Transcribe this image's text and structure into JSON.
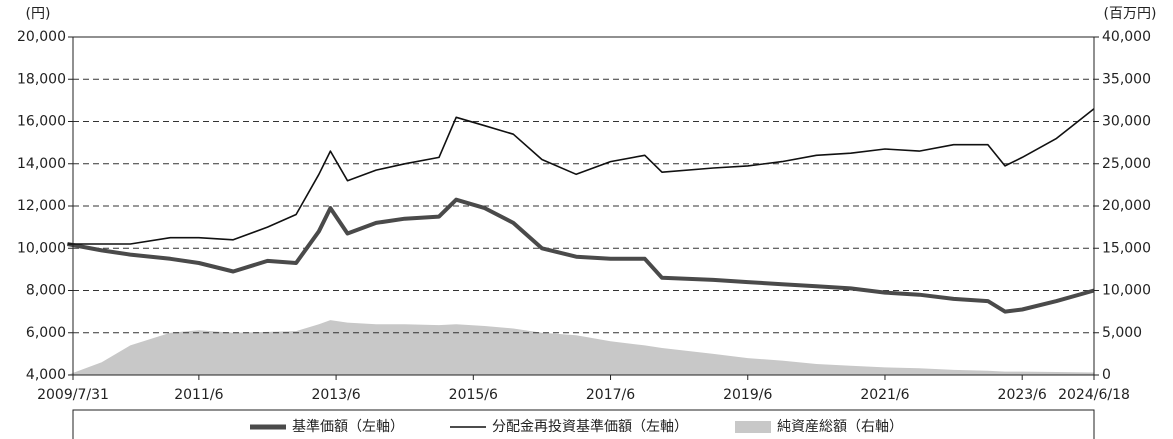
{
  "chart_data": {
    "type": "line",
    "y_unit_label": "(円)",
    "y2_unit_label": "(百万円)",
    "x": [
      "2009/7",
      "2010/1",
      "2010/6",
      "2011/1",
      "2011/6",
      "2011/12",
      "2012/6",
      "2012/11",
      "2013/3",
      "2013/5",
      "2013/8",
      "2014/1",
      "2014/6",
      "2014/12",
      "2015/3",
      "2015/8",
      "2016/1",
      "2016/6",
      "2016/12",
      "2017/6",
      "2017/12",
      "2018/3",
      "2018/12",
      "2019/6",
      "2019/12",
      "2020/6",
      "2020/12",
      "2021/6",
      "2021/12",
      "2022/6",
      "2022/12",
      "2023/3",
      "2023/6",
      "2023/12",
      "2024/6/18"
    ],
    "xlim": [
      "2009/7/31",
      "2024/6/18"
    ],
    "xticks": [
      "2009/7/31",
      "2011/6",
      "2013/6",
      "2015/6",
      "2017/6",
      "2019/6",
      "2021/6",
      "2023/6",
      "2024/6/18"
    ],
    "ylim": [
      4000,
      20000
    ],
    "yticks": [
      {
        "value": 4000,
        "label": "4,000"
      },
      {
        "value": 6000,
        "label": "6,000"
      },
      {
        "value": 8000,
        "label": "8,000"
      },
      {
        "value": 10000,
        "label": "10,000"
      },
      {
        "value": 12000,
        "label": "12,000"
      },
      {
        "value": 14000,
        "label": "14,000"
      },
      {
        "value": 16000,
        "label": "16,000"
      },
      {
        "value": 18000,
        "label": "18,000"
      },
      {
        "value": 20000,
        "label": "20,000"
      }
    ],
    "y2lim": [
      0,
      40000
    ],
    "y2ticks": [
      0,
      {
        "value": 5000,
        "label": "5,000"
      },
      {
        "value": 10000,
        "label": "10,000"
      },
      {
        "value": 15000,
        "label": "15,000"
      },
      {
        "value": 20000,
        "label": "20,000"
      },
      {
        "value": 25000,
        "label": "25,000"
      },
      {
        "value": 30000,
        "label": "30,000"
      },
      {
        "value": 35000,
        "label": "35,000"
      },
      {
        "value": 40000,
        "label": "40,000"
      }
    ],
    "grid": true,
    "legend": "bottom",
    "series": [
      {
        "name": "基準価額（左軸）",
        "color": "#4a4a4a",
        "style": "thick",
        "values": [
          10200,
          9900,
          9700,
          9500,
          9300,
          8900,
          9400,
          9300,
          10800,
          11900,
          10700,
          11200,
          11400,
          11500,
          12300,
          11900,
          11200,
          10000,
          9600,
          9500,
          9500,
          8600,
          8500,
          8400,
          8300,
          8200,
          8100,
          7900,
          7800,
          7600,
          7500,
          7000,
          7100,
          7500,
          8000
        ]
      },
      {
        "name": "分配金再投資基準価額（左軸）",
        "color": "#111111",
        "style": "thin",
        "values": [
          10200,
          10200,
          10200,
          10500,
          10500,
          10400,
          11000,
          11600,
          13500,
          14600,
          13200,
          13700,
          14000,
          14300,
          16200,
          15800,
          15400,
          14200,
          13500,
          14100,
          14400,
          13600,
          13800,
          13900,
          14100,
          14400,
          14500,
          14700,
          14600,
          14900,
          14900,
          13900,
          14300,
          15200,
          16600
        ]
      },
      {
        "name": "純資産総額（右軸）",
        "color": "#c8c8c8",
        "style": "area",
        "axis": "y2",
        "values": [
          0,
          1500,
          3500,
          5000,
          5300,
          5000,
          5100,
          5200,
          6000,
          6500,
          6200,
          6000,
          6000,
          5900,
          6000,
          5800,
          5500,
          5000,
          4700,
          4000,
          3500,
          3200,
          2500,
          2000,
          1700,
          1300,
          1100,
          900,
          800,
          600,
          500,
          400,
          400,
          350,
          300
        ]
      }
    ]
  }
}
